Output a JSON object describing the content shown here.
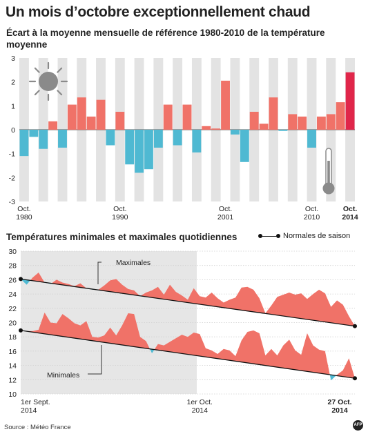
{
  "title": "Un mois d’octobre exceptionnellement chaud",
  "source": "Source : Météo France",
  "logo_text": "AFP",
  "chart_data": [
    {
      "type": "bar",
      "title": "Écart à la moyenne mensuelle de référence 1980-2010 de la température moyenne",
      "x": [
        1980,
        1981,
        1982,
        1983,
        1984,
        1985,
        1986,
        1987,
        1988,
        1989,
        1990,
        1991,
        1992,
        1993,
        1994,
        1995,
        1996,
        1997,
        1998,
        1999,
        2000,
        2001,
        2002,
        2003,
        2004,
        2005,
        2006,
        2007,
        2008,
        2009,
        2010,
        2011,
        2012,
        2013,
        2014
      ],
      "values": [
        -1.1,
        -0.3,
        -0.8,
        0.35,
        -0.75,
        1.05,
        1.35,
        0.55,
        1.25,
        -0.65,
        0.75,
        -1.45,
        -1.8,
        -1.65,
        -0.75,
        1.05,
        -0.65,
        1.05,
        -0.95,
        0.15,
        0.05,
        2.05,
        -0.2,
        -1.35,
        0.75,
        0.25,
        1.35,
        -0.05,
        0.65,
        0.55,
        -0.75,
        0.55,
        0.65,
        1.15,
        2.4
      ],
      "ylim": [
        -3,
        3
      ],
      "yticks": [
        "3",
        "2",
        "1",
        "0",
        "-1",
        "-2",
        "-3"
      ],
      "colors": {
        "positive": "#f07268",
        "negative": "#4fb9d2",
        "highlight": "#e0264a",
        "band": "#e3e3e3"
      },
      "x_labels": [
        {
          "year": 1980,
          "line1": "Oct.",
          "line2": "1980",
          "bold": false
        },
        {
          "year": 1990,
          "line1": "Oct.",
          "line2": "1990",
          "bold": false
        },
        {
          "year": 2001,
          "line1": "Oct.",
          "line2": "2001",
          "bold": false
        },
        {
          "year": 2010,
          "line1": "Oct.",
          "line2": "2010",
          "bold": false
        },
        {
          "year": 2014,
          "line1": "Oct.",
          "line2": "2014",
          "bold": true
        }
      ],
      "icons": [
        "sun-icon",
        "thermometer-icon"
      ]
    },
    {
      "type": "area",
      "title": "Températures minimales et maximales quotidiennes",
      "legend": {
        "normales": "Normales de saison"
      },
      "ylim": [
        10,
        30
      ],
      "yticks": [
        "30",
        "28",
        "26",
        "24",
        "22",
        "20",
        "18",
        "16",
        "14",
        "12",
        "10"
      ],
      "x_range": [
        "2014-09-01",
        "2014-10-27"
      ],
      "september_shaded": [
        "2014-09-01",
        "2014-09-30"
      ],
      "x_labels": [
        {
          "day": 0,
          "line1": "1er Sept.",
          "line2": "2014",
          "bold": false
        },
        {
          "day": 30,
          "line1": "1er Oct.",
          "line2": "2014",
          "bold": false
        },
        {
          "day": 56,
          "line1": "27 Oct.",
          "line2": "2014",
          "bold": true
        }
      ],
      "annotations": {
        "maximales": "Maximales",
        "minimales": "Minimales"
      },
      "colors": {
        "above": "#f07268",
        "below": "#4fb9d2",
        "normal": "#111111",
        "band": "#e6e6e6"
      },
      "normales": {
        "maximales": [
          [
            0,
            26.1
          ],
          [
            56,
            19.5
          ]
        ],
        "minimales": [
          [
            0,
            18.9
          ],
          [
            56,
            12.2
          ]
        ]
      },
      "series": [
        {
          "name": "Maximales",
          "values": [
            26.1,
            25.3,
            26.3,
            27.0,
            25.6,
            25.4,
            26.0,
            25.6,
            25.4,
            25.1,
            25.5,
            24.8,
            24.6,
            24.6,
            25.2,
            25.9,
            26.1,
            25.3,
            24.7,
            24.5,
            23.7,
            24.2,
            24.5,
            25.0,
            23.9,
            25.3,
            24.3,
            23.8,
            23.2,
            24.8,
            23.7,
            23.5,
            24.2,
            23.4,
            22.8,
            23.2,
            23.5,
            24.9,
            25.0,
            24.6,
            23.4,
            21.3,
            22.4,
            23.6,
            23.9,
            24.2,
            23.9,
            24.1,
            23.3,
            24.0,
            24.6,
            24.1,
            22.2,
            23.1,
            22.5,
            20.9,
            19.5
          ]
        },
        {
          "name": "Minimales",
          "values": [
            18.9,
            18.8,
            18.8,
            19.0,
            21.4,
            20.0,
            19.9,
            21.2,
            20.6,
            19.9,
            19.6,
            20.2,
            18.0,
            17.9,
            18.2,
            19.3,
            18.2,
            19.6,
            21.3,
            21.2,
            18.0,
            17.4,
            15.7,
            17.0,
            16.8,
            17.3,
            17.8,
            18.3,
            18.0,
            18.6,
            18.4,
            16.4,
            16.1,
            15.6,
            16.3,
            16.1,
            15.3,
            17.5,
            18.7,
            18.9,
            18.5,
            15.4,
            16.3,
            15.4,
            16.8,
            17.6,
            16.1,
            15.5,
            18.5,
            16.8,
            16.2,
            16.0,
            11.9,
            12.7,
            13.3,
            15.0,
            12.2
          ]
        }
      ]
    }
  ]
}
